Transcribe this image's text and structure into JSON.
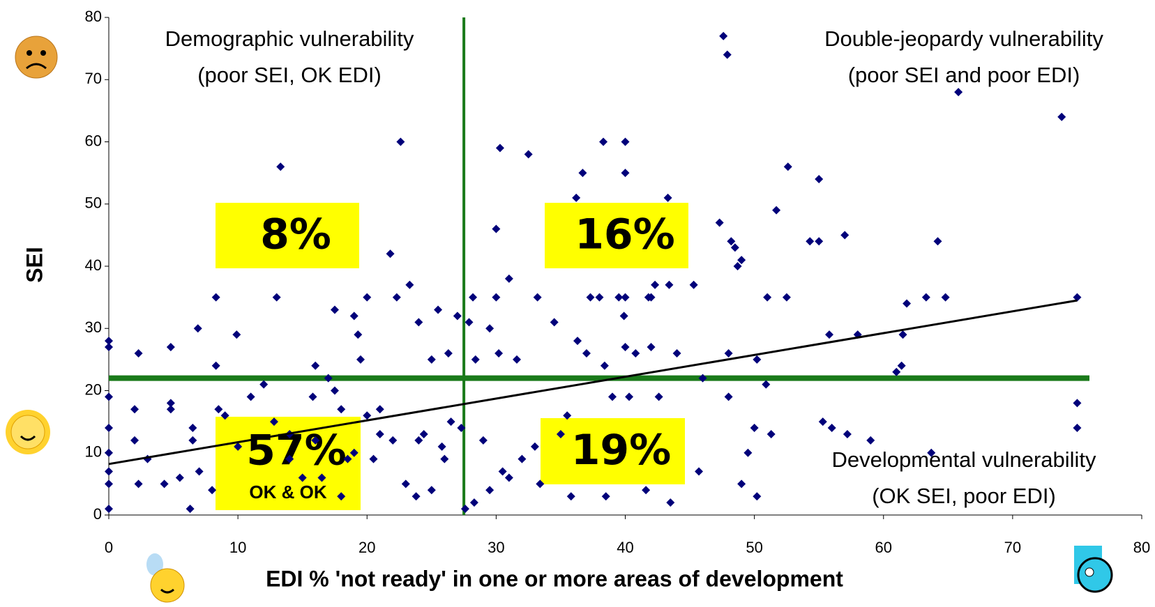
{
  "chart_data": {
    "type": "scatter",
    "x_label": "EDI % 'not ready' in one or more areas of development",
    "y_label": "SEI",
    "xlim": [
      0,
      80
    ],
    "xticks": [
      0,
      10,
      20,
      30,
      40,
      50,
      60,
      70,
      80
    ],
    "ylim": [
      0,
      80
    ],
    "yticks": [
      0,
      10,
      20,
      30,
      40,
      50,
      60,
      70,
      80
    ],
    "color": "#00007a",
    "x": [
      0,
      0,
      0,
      0,
      0,
      0,
      0,
      0,
      2.3,
      2.3,
      2,
      2,
      4.8,
      4.8,
      4.8,
      4.3,
      5.5,
      6.5,
      6.5,
      6.9,
      6.3,
      7,
      8,
      8.3,
      8.3,
      8.5,
      9.9,
      11,
      12,
      13.3,
      13,
      12.8,
      14,
      15,
      16,
      15.8,
      16.5,
      17,
      17.5,
      18,
      17.5,
      18,
      19,
      19.3,
      19.5,
      20,
      20,
      20.5,
      21,
      22,
      21.8,
      22.3,
      22.6,
      23,
      23.3,
      23.8,
      24,
      24.4,
      25,
      25,
      25.5,
      25.8,
      26.5,
      26.3,
      27,
      27.3,
      27.6,
      27.9,
      28.2,
      28.4,
      28.3,
      29,
      29.5,
      30,
      30,
      30.3,
      30.2,
      30.5,
      31,
      31.6,
      32.5,
      33.2,
      33.4,
      34.5,
      35.5,
      35.8,
      36.2,
      36.3,
      36.7,
      37,
      37.3,
      38,
      38.3,
      38.4,
      38.5,
      39,
      39.5,
      40,
      40,
      40,
      39.9,
      40,
      40.3,
      40.8,
      41.8,
      42,
      42.3,
      41.6,
      42,
      42.6,
      43.3,
      43.4,
      43.5,
      45.3,
      45.7,
      47.3,
      47.6,
      47.9,
      48,
      48,
      48.2,
      48.5,
      48.7,
      49,
      49,
      49.5,
      50.2,
      50.2,
      50,
      51,
      50.9,
      51.3,
      51.7,
      52.5,
      52.6,
      54.3,
      55,
      55,
      55.3,
      55.8,
      56,
      57,
      57.2,
      58,
      59,
      61,
      61.4,
      61.5,
      61.8,
      63.3,
      63.7,
      64.2,
      64.8,
      65.8,
      73.8,
      75,
      75,
      75,
      46,
      44,
      35,
      33,
      32,
      31,
      29.5,
      26,
      24,
      21,
      19,
      18.5,
      16,
      14,
      10,
      9,
      3
    ],
    "y": [
      28,
      27,
      19,
      14,
      10,
      7,
      5,
      1,
      26,
      5,
      17,
      12,
      27,
      18,
      17,
      5,
      6,
      14,
      12,
      30,
      1,
      7,
      4,
      35,
      24,
      17,
      29,
      19,
      21,
      56,
      35,
      15,
      13,
      6,
      24,
      19,
      6,
      22,
      20,
      17,
      33,
      3,
      32,
      29,
      25,
      35,
      16,
      9,
      17,
      12,
      42,
      35,
      60,
      5,
      37,
      3,
      31,
      13,
      25,
      4,
      33,
      11,
      15,
      26,
      32,
      14,
      1,
      31,
      35,
      25,
      2,
      12,
      30,
      46,
      35,
      59,
      26,
      7,
      38,
      25,
      58,
      35,
      5,
      31,
      16,
      3,
      51,
      28,
      55,
      26,
      35,
      35,
      60,
      24,
      3,
      19,
      35,
      60,
      55,
      35,
      32,
      27,
      19,
      26,
      35,
      35,
      37,
      4,
      27,
      19,
      51,
      37,
      2,
      37,
      7,
      47,
      77,
      74,
      26,
      19,
      44,
      43,
      40,
      41,
      5,
      10,
      25,
      3,
      14,
      35,
      21,
      13,
      49,
      35,
      56,
      44,
      44,
      54,
      15,
      29,
      14,
      45,
      13,
      29,
      12,
      23,
      24,
      29,
      34,
      35,
      10,
      44,
      35,
      68,
      64,
      35,
      18,
      14,
      22,
      26,
      13,
      11,
      9,
      6,
      4,
      9,
      12,
      13,
      10,
      9,
      12,
      9,
      11,
      16,
      9
    ],
    "trendline": {
      "x": [
        0,
        75
      ],
      "y": [
        8.2,
        34.5
      ],
      "color": "#000000"
    },
    "reference_lines": {
      "x": 27.5,
      "y": 22,
      "color": "#1a7a1a"
    },
    "quadrant_labels": [
      [
        "Demographic vulnerability",
        "(poor SEI, OK EDI)"
      ],
      [
        "Double-jeopardy vulnerability",
        "(poor SEI and poor EDI)"
      ],
      [
        "Developmental vulnerability",
        "(OK SEI, poor EDI)"
      ]
    ],
    "percent_boxes": [
      "8%",
      "16%",
      "57%",
      "19%"
    ],
    "percent_box_color": "#ffff00",
    "box_note": "OK & OK"
  }
}
